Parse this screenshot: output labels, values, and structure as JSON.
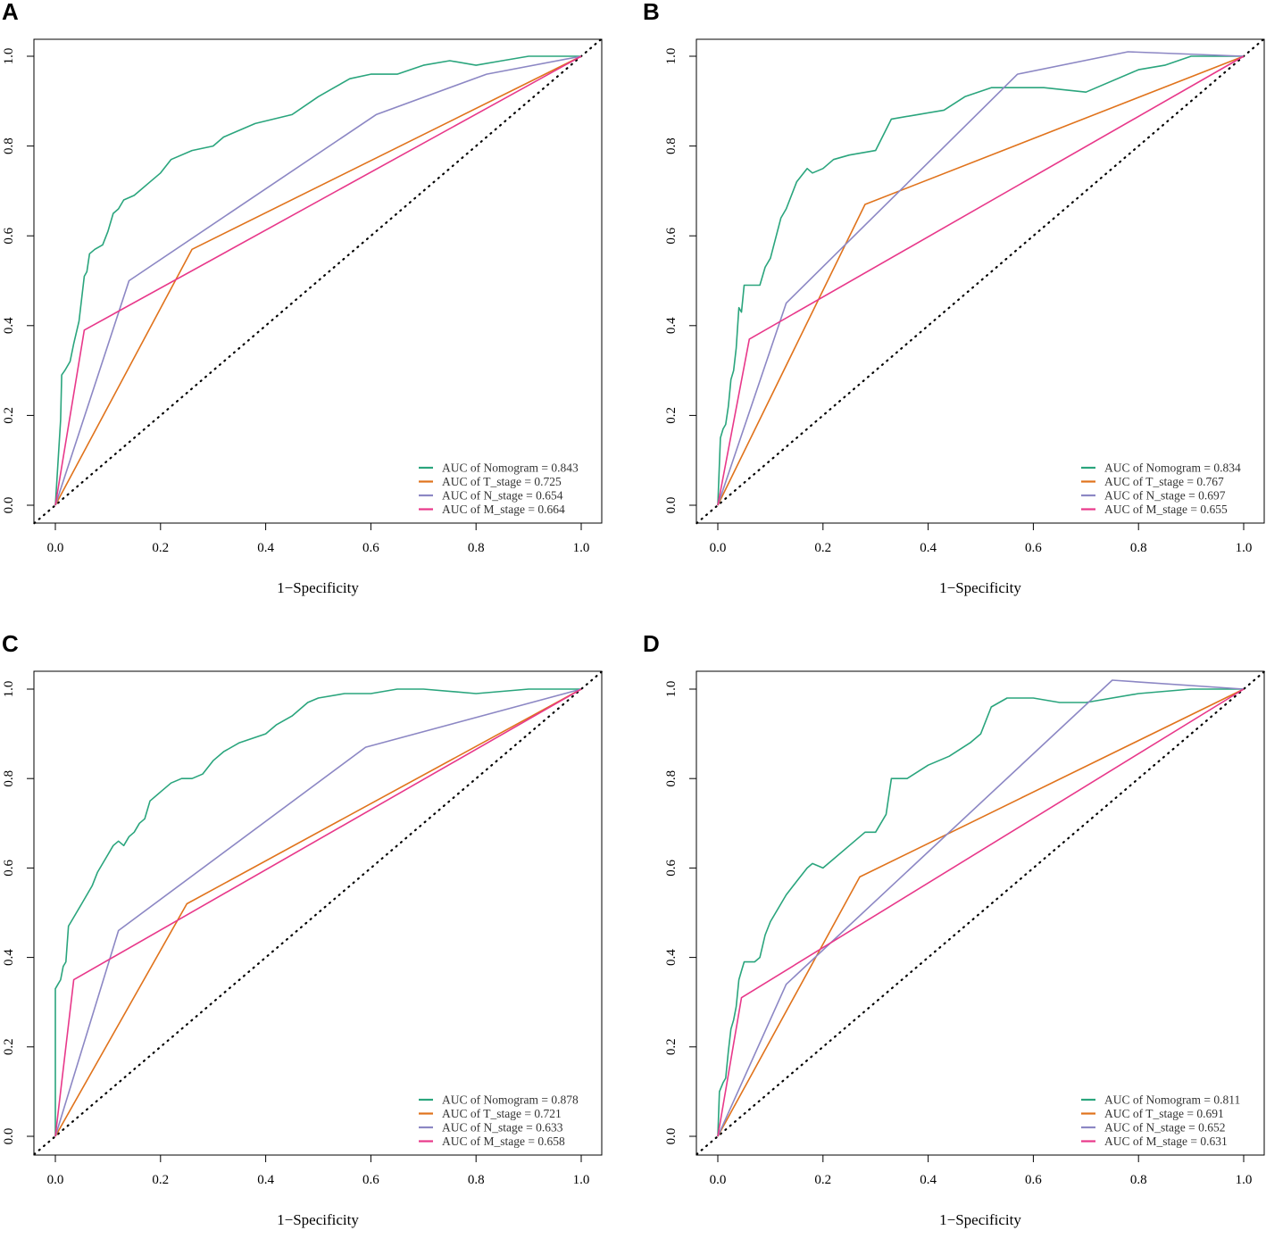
{
  "colors": {
    "nomogram": "#2aa57d",
    "t_stage": "#e0731c",
    "n_stage": "#8c87c4",
    "m_stage": "#e8388a",
    "reference": "#000000"
  },
  "chart_data": [
    {
      "type": "line",
      "panel": "A",
      "xlabel": "1−Specificity",
      "ylabel": "",
      "xlim": [
        0,
        1
      ],
      "ylim": [
        0,
        1
      ],
      "xticks": [
        "0.0",
        "0.2",
        "0.4",
        "0.6",
        "0.8",
        "1.0"
      ],
      "yticks": [
        "0.0",
        "0.2",
        "0.4",
        "0.6",
        "0.8",
        "1.0"
      ],
      "legend_position": "bottom-right",
      "series": [
        {
          "name": "AUC of Nomogram = 0.843",
          "key": "nomogram",
          "x": [
            0,
            0.01,
            0.012,
            0.018,
            0.028,
            0.035,
            0.045,
            0.055,
            0.06,
            0.065,
            0.075,
            0.09,
            0.1,
            0.11,
            0.12,
            0.13,
            0.15,
            0.16,
            0.18,
            0.2,
            0.22,
            0.26,
            0.3,
            0.32,
            0.38,
            0.45,
            0.5,
            0.53,
            0.56,
            0.6,
            0.65,
            0.7,
            0.75,
            0.8,
            0.85,
            0.9,
            1.0
          ],
          "y": [
            0,
            0.19,
            0.29,
            0.3,
            0.32,
            0.36,
            0.41,
            0.51,
            0.52,
            0.56,
            0.57,
            0.58,
            0.61,
            0.65,
            0.66,
            0.68,
            0.69,
            0.7,
            0.72,
            0.74,
            0.77,
            0.79,
            0.8,
            0.82,
            0.85,
            0.87,
            0.91,
            0.93,
            0.95,
            0.96,
            0.96,
            0.98,
            0.99,
            0.98,
            0.99,
            1.0,
            1.0
          ]
        },
        {
          "name": "AUC of T_stage = 0.725",
          "key": "t_stage",
          "x": [
            0,
            0.26,
            1
          ],
          "y": [
            0,
            0.57,
            1
          ]
        },
        {
          "name": "AUC of N_stage = 0.654",
          "key": "n_stage",
          "x": [
            0,
            0.14,
            0.61,
            0.82,
            1
          ],
          "y": [
            0,
            0.5,
            0.87,
            0.96,
            1
          ]
        },
        {
          "name": "AUC of M_stage = 0.664",
          "key": "m_stage",
          "x": [
            0,
            0.055,
            1
          ],
          "y": [
            0,
            0.39,
            1
          ]
        }
      ]
    },
    {
      "type": "line",
      "panel": "B",
      "xlabel": "1−Specificity",
      "ylabel": "",
      "xlim": [
        0,
        1
      ],
      "ylim": [
        0,
        1
      ],
      "xticks": [
        "0.0",
        "0.2",
        "0.4",
        "0.6",
        "0.8",
        "1.0"
      ],
      "yticks": [
        "0.0",
        "0.2",
        "0.4",
        "0.6",
        "0.8",
        "1.0"
      ],
      "legend_position": "bottom-right",
      "series": [
        {
          "name": "AUC of Nomogram = 0.834",
          "key": "nomogram",
          "x": [
            0,
            0.005,
            0.01,
            0.015,
            0.02,
            0.025,
            0.03,
            0.035,
            0.04,
            0.045,
            0.05,
            0.06,
            0.08,
            0.09,
            0.1,
            0.12,
            0.13,
            0.15,
            0.17,
            0.18,
            0.2,
            0.22,
            0.25,
            0.3,
            0.33,
            0.38,
            0.43,
            0.47,
            0.52,
            0.56,
            0.62,
            0.7,
            0.8,
            0.85,
            0.9,
            1.0
          ],
          "y": [
            0,
            0.15,
            0.17,
            0.18,
            0.22,
            0.28,
            0.3,
            0.35,
            0.44,
            0.43,
            0.49,
            0.49,
            0.49,
            0.53,
            0.55,
            0.64,
            0.66,
            0.72,
            0.75,
            0.74,
            0.75,
            0.77,
            0.78,
            0.79,
            0.86,
            0.87,
            0.88,
            0.91,
            0.93,
            0.93,
            0.93,
            0.92,
            0.97,
            0.98,
            1.0,
            1.0
          ]
        },
        {
          "name": "AUC of T_stage = 0.767",
          "key": "t_stage",
          "x": [
            0,
            0.28,
            1
          ],
          "y": [
            0,
            0.67,
            1
          ]
        },
        {
          "name": "AUC of N_stage = 0.697",
          "key": "n_stage",
          "x": [
            0,
            0.13,
            0.57,
            0.78,
            1
          ],
          "y": [
            0,
            0.45,
            0.96,
            1.01,
            1
          ]
        },
        {
          "name": "AUC of M_stage = 0.655",
          "key": "m_stage",
          "x": [
            0,
            0.06,
            1
          ],
          "y": [
            0,
            0.37,
            1
          ]
        }
      ]
    },
    {
      "type": "line",
      "panel": "C",
      "xlabel": "1−Specificity",
      "ylabel": "",
      "xlim": [
        0,
        1
      ],
      "ylim": [
        0,
        1
      ],
      "xticks": [
        "0.0",
        "0.2",
        "0.4",
        "0.6",
        "0.8",
        "1.0"
      ],
      "yticks": [
        "0.0",
        "0.2",
        "0.4",
        "0.6",
        "0.8",
        "1.0"
      ],
      "legend_position": "bottom-right",
      "series": [
        {
          "name": "AUC of Nomogram = 0.878",
          "key": "nomogram",
          "x": [
            0,
            0,
            0.005,
            0.01,
            0.015,
            0.02,
            0.025,
            0.03,
            0.04,
            0.05,
            0.06,
            0.07,
            0.08,
            0.09,
            0.1,
            0.11,
            0.12,
            0.13,
            0.14,
            0.15,
            0.16,
            0.17,
            0.18,
            0.2,
            0.22,
            0.24,
            0.26,
            0.28,
            0.3,
            0.32,
            0.35,
            0.4,
            0.42,
            0.45,
            0.48,
            0.5,
            0.55,
            0.6,
            0.65,
            0.7,
            0.8,
            0.9,
            1.0
          ],
          "y": [
            0,
            0.33,
            0.34,
            0.35,
            0.38,
            0.39,
            0.47,
            0.48,
            0.5,
            0.52,
            0.54,
            0.56,
            0.59,
            0.61,
            0.63,
            0.65,
            0.66,
            0.65,
            0.67,
            0.68,
            0.7,
            0.71,
            0.75,
            0.77,
            0.79,
            0.8,
            0.8,
            0.81,
            0.84,
            0.86,
            0.88,
            0.9,
            0.92,
            0.94,
            0.97,
            0.98,
            0.99,
            0.99,
            1.0,
            1.0,
            0.99,
            1.0,
            1.0
          ]
        },
        {
          "name": "AUC of T_stage = 0.721",
          "key": "t_stage",
          "x": [
            0,
            0.25,
            1
          ],
          "y": [
            0,
            0.52,
            1
          ]
        },
        {
          "name": "AUC of N_stage = 0.633",
          "key": "n_stage",
          "x": [
            0,
            0.12,
            0.59,
            1
          ],
          "y": [
            0,
            0.46,
            0.87,
            1
          ]
        },
        {
          "name": "AUC of M_stage = 0.658",
          "key": "m_stage",
          "x": [
            0,
            0.035,
            1
          ],
          "y": [
            0,
            0.35,
            1
          ]
        }
      ]
    },
    {
      "type": "line",
      "panel": "D",
      "xlabel": "1−Specificity",
      "ylabel": "",
      "xlim": [
        0,
        1
      ],
      "ylim": [
        0,
        1
      ],
      "xticks": [
        "0.0",
        "0.2",
        "0.4",
        "0.6",
        "0.8",
        "1.0"
      ],
      "yticks": [
        "0.0",
        "0.2",
        "0.4",
        "0.6",
        "0.8",
        "1.0"
      ],
      "legend_position": "bottom-right",
      "series": [
        {
          "name": "AUC of Nomogram = 0.811",
          "key": "nomogram",
          "x": [
            0,
            0.003,
            0.01,
            0.015,
            0.02,
            0.025,
            0.03,
            0.035,
            0.04,
            0.045,
            0.05,
            0.06,
            0.07,
            0.08,
            0.09,
            0.1,
            0.11,
            0.12,
            0.13,
            0.15,
            0.17,
            0.18,
            0.2,
            0.22,
            0.25,
            0.28,
            0.3,
            0.32,
            0.33,
            0.36,
            0.4,
            0.44,
            0.48,
            0.5,
            0.52,
            0.55,
            0.6,
            0.65,
            0.7,
            0.8,
            0.9,
            1.0
          ],
          "y": [
            0,
            0.1,
            0.12,
            0.13,
            0.19,
            0.24,
            0.26,
            0.29,
            0.35,
            0.37,
            0.39,
            0.39,
            0.39,
            0.4,
            0.45,
            0.48,
            0.5,
            0.52,
            0.54,
            0.57,
            0.6,
            0.61,
            0.6,
            0.62,
            0.65,
            0.68,
            0.68,
            0.72,
            0.8,
            0.8,
            0.83,
            0.85,
            0.88,
            0.9,
            0.96,
            0.98,
            0.98,
            0.97,
            0.97,
            0.99,
            1.0,
            1.0
          ]
        },
        {
          "name": "AUC of T_stage = 0.691",
          "key": "t_stage",
          "x": [
            0,
            0.27,
            1
          ],
          "y": [
            0,
            0.58,
            1
          ]
        },
        {
          "name": "AUC of N_stage = 0.652",
          "key": "n_stage",
          "x": [
            0,
            0.13,
            0.75,
            1
          ],
          "y": [
            0,
            0.34,
            1.02,
            1
          ]
        },
        {
          "name": "AUC of M_stage = 0.631",
          "key": "m_stage",
          "x": [
            0,
            0.045,
            1
          ],
          "y": [
            0,
            0.31,
            1
          ]
        }
      ]
    }
  ]
}
